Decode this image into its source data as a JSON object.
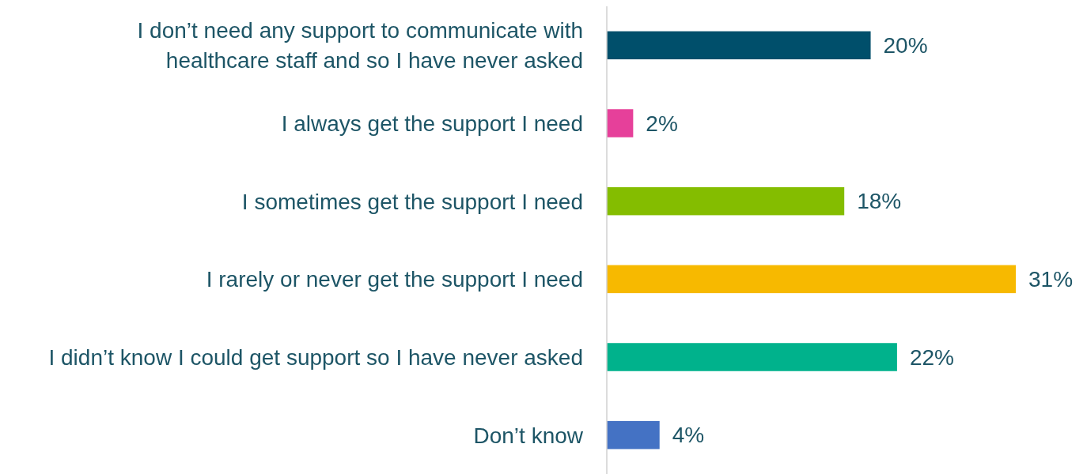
{
  "chart_data": {
    "type": "bar",
    "orientation": "horizontal",
    "categories": [
      "I don’t need any support to communicate with healthcare staff and so I have never asked",
      "I always get the support I need",
      "I sometimes get the support I need",
      "I rarely or never get the support I need",
      "I didn’t know I could get support so I have never asked",
      "Don’t know"
    ],
    "values": [
      20,
      2,
      18,
      31,
      22,
      4
    ],
    "colors": [
      "#004f6b",
      "#e6409a",
      "#84bd00",
      "#f7b900",
      "#00b28c",
      "#4472c4"
    ],
    "value_labels": [
      "20%",
      "2%",
      "18%",
      "31%",
      "22%",
      "4%"
    ]
  }
}
